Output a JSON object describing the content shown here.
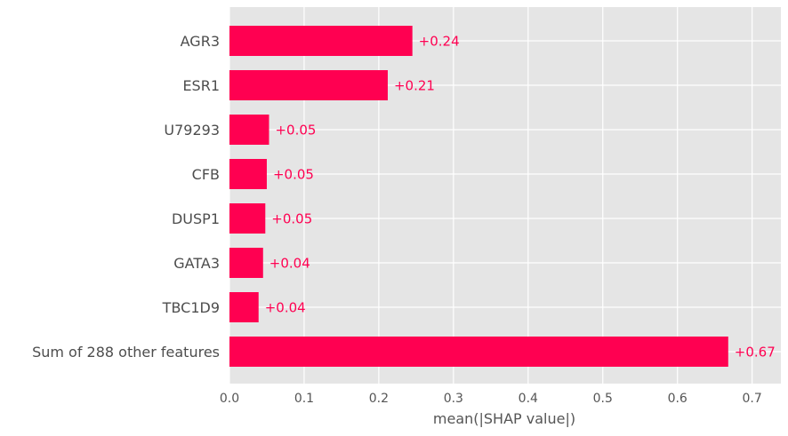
{
  "chart_data": {
    "type": "bar",
    "orientation": "horizontal",
    "categories": [
      "AGR3",
      "ESR1",
      "U79293",
      "CFB",
      "DUSP1",
      "GATA3",
      "TBC1D9",
      "Sum of 288 other features"
    ],
    "values": [
      0.245,
      0.212,
      0.053,
      0.05,
      0.048,
      0.045,
      0.039,
      0.668
    ],
    "value_labels": [
      "+0.24",
      "+0.21",
      "+0.05",
      "+0.05",
      "+0.05",
      "+0.04",
      "+0.04",
      "+0.67"
    ],
    "xlabel": "mean(|SHAP value|)",
    "ylabel": "",
    "xlim": [
      0,
      0.74
    ],
    "xticks": [
      0.0,
      0.1,
      0.2,
      0.3,
      0.4,
      0.5,
      0.6,
      0.7
    ],
    "xtick_labels": [
      "0.0",
      "0.1",
      "0.2",
      "0.3",
      "0.4",
      "0.5",
      "0.6",
      "0.7"
    ],
    "grid": true,
    "colors": {
      "bar": "#ff0051",
      "background": "#e5e5e5",
      "grid": "#ffffff",
      "value_label": "#ff0051"
    }
  }
}
